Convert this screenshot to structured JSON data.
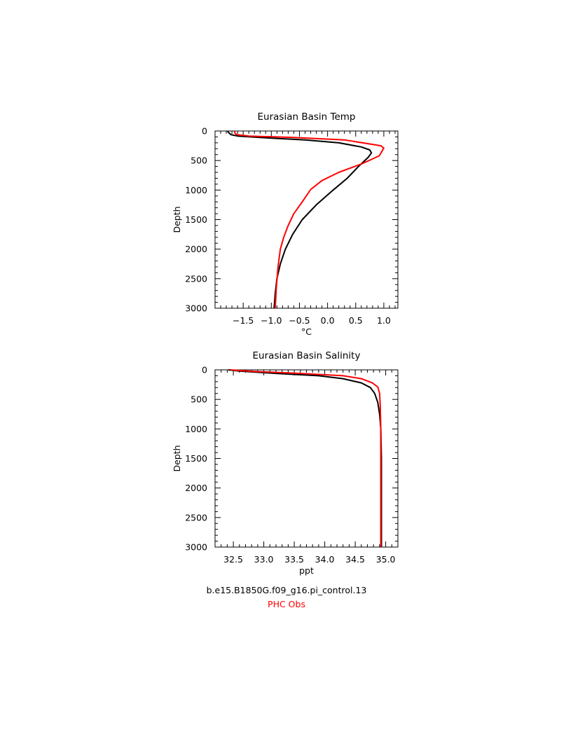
{
  "colors": {
    "model": "#000000",
    "obs": "#ff0000"
  },
  "legend": {
    "model_label": "b.e15.B1850G.f09_g16.pi_control.13",
    "obs_label": "PHC Obs"
  },
  "chart_data": [
    {
      "type": "line",
      "title": "Eurasian Basin Temp",
      "xlabel": "°C",
      "ylabel": "Depth",
      "xlim": [
        -2.0,
        1.25
      ],
      "ylim": [
        3000,
        0
      ],
      "y_inverted": true,
      "x_ticks": [
        -1.5,
        -1.0,
        -0.5,
        0.0,
        0.5,
        1.0
      ],
      "x_tick_labels": [
        "−1.5",
        "−1.0",
        "−0.5",
        "0.0",
        "0.5",
        "1.0"
      ],
      "y_ticks": [
        0,
        500,
        1000,
        1500,
        2000,
        2500,
        3000
      ],
      "y_tick_labels": [
        "0",
        "500",
        "1000",
        "1500",
        "2000",
        "2500",
        "3000"
      ],
      "grid": false,
      "series": [
        {
          "name": "b.e15.B1850G.f09_g16.pi_control.13",
          "color": "#000000",
          "x": [
            -1.78,
            -1.76,
            -1.72,
            -1.6,
            -1.2,
            -0.4,
            0.2,
            0.6,
            0.75,
            0.78,
            0.72,
            0.55,
            0.35,
            0.1,
            -0.2,
            -0.45,
            -0.62,
            -0.75,
            -0.84,
            -0.9,
            -0.93,
            -0.95
          ],
          "y": [
            0,
            25,
            60,
            85,
            110,
            150,
            200,
            270,
            320,
            370,
            450,
            600,
            800,
            1000,
            1250,
            1500,
            1750,
            2000,
            2250,
            2500,
            2750,
            3000
          ]
        },
        {
          "name": "PHC Obs",
          "color": "#ff0000",
          "x": [
            -1.65,
            -1.65,
            -1.62,
            -1.4,
            -0.6,
            0.3,
            0.95,
            1.0,
            0.92,
            0.6,
            0.2,
            -0.1,
            -0.3,
            -0.45,
            -0.6,
            -0.7,
            -0.78,
            -0.84,
            -0.88,
            -0.91,
            -0.93
          ],
          "y": [
            0,
            30,
            60,
            85,
            110,
            150,
            250,
            290,
            420,
            560,
            700,
            840,
            990,
            1200,
            1400,
            1600,
            1800,
            2000,
            2300,
            2650,
            3000
          ]
        }
      ]
    },
    {
      "type": "line",
      "title": "Eurasian Basin Salinity",
      "xlabel": "ppt",
      "ylabel": "Depth",
      "xlim": [
        32.2,
        35.2
      ],
      "ylim": [
        3000,
        0
      ],
      "y_inverted": true,
      "x_ticks": [
        32.5,
        33.0,
        33.5,
        34.0,
        34.5,
        35.0
      ],
      "x_tick_labels": [
        "32.5",
        "33.0",
        "33.5",
        "34.0",
        "34.5",
        "35.0"
      ],
      "y_ticks": [
        0,
        500,
        1000,
        1500,
        2000,
        2500,
        3000
      ],
      "y_tick_labels": [
        "0",
        "500",
        "1000",
        "1500",
        "2000",
        "2500",
        "3000"
      ],
      "grid": false,
      "series": [
        {
          "name": "b.e15.B1850G.f09_g16.pi_control.13",
          "color": "#000000",
          "x": [
            32.42,
            32.6,
            33.2,
            33.9,
            34.3,
            34.6,
            34.75,
            34.82,
            34.87,
            34.9,
            34.92,
            34.93,
            34.93,
            34.93
          ],
          "y": [
            0,
            20,
            60,
            100,
            150,
            220,
            300,
            400,
            550,
            750,
            1000,
            1500,
            2200,
            3000
          ]
        },
        {
          "name": "PHC Obs",
          "color": "#ff0000",
          "x": [
            32.45,
            32.8,
            33.6,
            34.3,
            34.6,
            34.78,
            34.87,
            34.9,
            34.91,
            34.92,
            34.92,
            34.92
          ],
          "y": [
            0,
            25,
            60,
            100,
            150,
            220,
            290,
            400,
            600,
            1000,
            2000,
            3000
          ]
        }
      ]
    }
  ]
}
